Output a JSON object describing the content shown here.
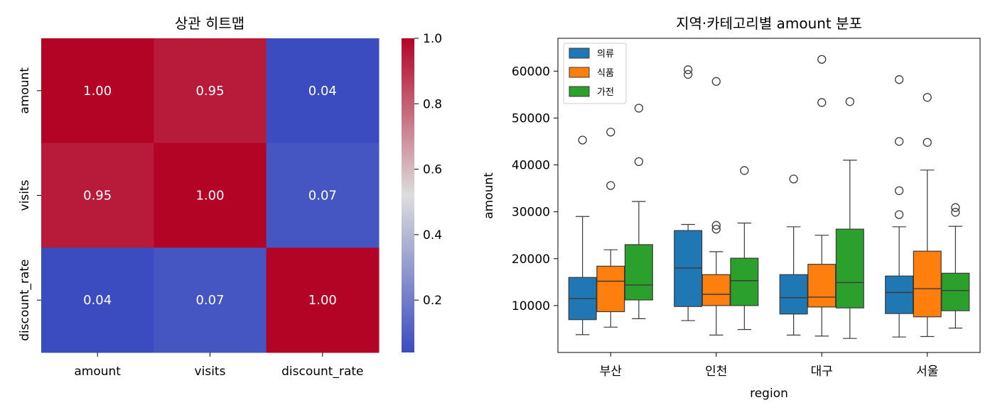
{
  "chart_data": [
    {
      "type": "heatmap",
      "title": "상관 히트맵",
      "rows": [
        "amount",
        "visits",
        "discount_rate"
      ],
      "cols": [
        "amount",
        "visits",
        "discount_rate"
      ],
      "values": [
        [
          1.0,
          0.95,
          0.04
        ],
        [
          0.95,
          1.0,
          0.07
        ],
        [
          0.04,
          0.07,
          1.0
        ]
      ],
      "labels": [
        [
          "1.00",
          "0.95",
          "0.04"
        ],
        [
          "0.95",
          "1.00",
          "0.07"
        ],
        [
          "0.04",
          "0.07",
          "1.00"
        ]
      ],
      "colormap": "coolwarm",
      "vlim": [
        0.04,
        1.0
      ],
      "colorbar_ticks": [
        0.2,
        0.4,
        0.6,
        0.8,
        1.0
      ],
      "colorbar_tick_labels": [
        "0.2",
        "0.4",
        "0.6",
        "0.8",
        "1.0"
      ],
      "colors": {
        "low": "#3b4cc0",
        "mid": "#dddddd",
        "high": "#b40426"
      }
    },
    {
      "type": "box",
      "title": "지역·카테고리별 amount 분포",
      "xlabel": "region",
      "ylabel": "amount",
      "categories": [
        "부산",
        "인천",
        "대구",
        "서울"
      ],
      "ylim": [
        0,
        67000
      ],
      "yticks": [
        10000,
        20000,
        30000,
        40000,
        50000,
        60000
      ],
      "ytick_labels": [
        "10000",
        "20000",
        "30000",
        "40000",
        "50000",
        "60000"
      ],
      "legend_position": "top-left",
      "series": [
        {
          "name": "의류",
          "color": "#1f77b4",
          "boxes": [
            {
              "whislo": 3800,
              "q1": 7000,
              "med": 11500,
              "q3": 16000,
              "whishi": 29000,
              "fliers": [
                45300
              ]
            },
            {
              "whislo": 6800,
              "q1": 9800,
              "med": 18000,
              "q3": 26000,
              "whishi": 27300,
              "fliers": [
                59300,
                60300
              ]
            },
            {
              "whislo": 3700,
              "q1": 8200,
              "med": 11700,
              "q3": 16600,
              "whishi": 26800,
              "fliers": [
                37000
              ]
            },
            {
              "whislo": 3300,
              "q1": 8300,
              "med": 12800,
              "q3": 16300,
              "whishi": 26800,
              "fliers": [
                29400,
                34500,
                45000,
                58200
              ]
            }
          ]
        },
        {
          "name": "식품",
          "color": "#ff7f0e",
          "boxes": [
            {
              "whislo": 5400,
              "q1": 8700,
              "med": 15200,
              "q3": 18400,
              "whishi": 21900,
              "fliers": [
                35600,
                47000
              ]
            },
            {
              "whislo": 3700,
              "q1": 10000,
              "med": 12400,
              "q3": 16600,
              "whishi": 21500,
              "fliers": [
                26300,
                27100,
                57800
              ]
            },
            {
              "whislo": 3500,
              "q1": 9700,
              "med": 11800,
              "q3": 18800,
              "whishi": 25000,
              "fliers": [
                53300,
                62500
              ]
            },
            {
              "whislo": 3400,
              "q1": 7600,
              "med": 13600,
              "q3": 21600,
              "whishi": 38900,
              "fliers": [
                44800,
                54400
              ]
            }
          ]
        },
        {
          "name": "가전",
          "color": "#2ca02c",
          "boxes": [
            {
              "whislo": 7200,
              "q1": 11200,
              "med": 14400,
              "q3": 23000,
              "whishi": 32200,
              "fliers": [
                40700,
                52100
              ]
            },
            {
              "whislo": 4900,
              "q1": 10000,
              "med": 15300,
              "q3": 20100,
              "whishi": 27600,
              "fliers": [
                38800
              ]
            },
            {
              "whislo": 3000,
              "q1": 9500,
              "med": 14900,
              "q3": 26300,
              "whishi": 41000,
              "fliers": [
                53500
              ]
            },
            {
              "whislo": 5200,
              "q1": 8900,
              "med": 13200,
              "q3": 16900,
              "whishi": 26900,
              "fliers": [
                29900,
                30900
              ]
            }
          ]
        }
      ]
    }
  ]
}
